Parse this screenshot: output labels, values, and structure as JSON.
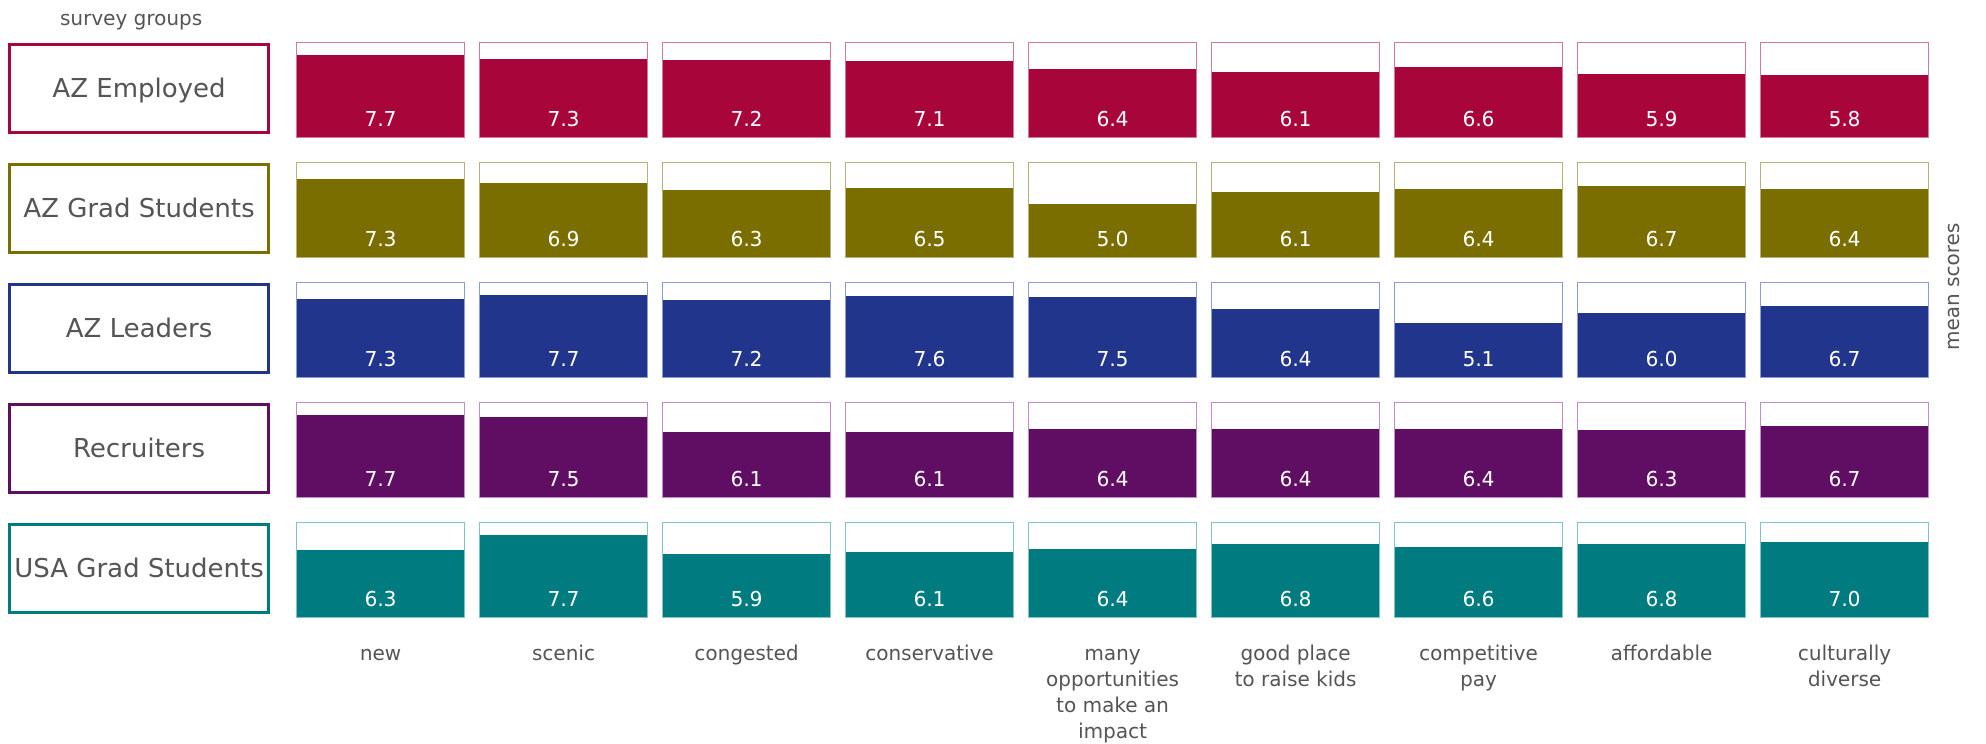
{
  "header": {
    "groups_label": "survey groups"
  },
  "right_label": "mean scores",
  "chart_data": {
    "type": "bar",
    "title": "",
    "ylabel": "mean scores",
    "ylim": [
      0,
      9
    ],
    "categories": [
      "new",
      "scenic",
      "congested",
      "conservative",
      "many opportunities to make an impact",
      "good place to raise kids",
      "competitive pay",
      "affordable",
      "culturally diverse"
    ],
    "category_lines": [
      [
        "new"
      ],
      [
        "scenic"
      ],
      [
        "congested"
      ],
      [
        "conservative"
      ],
      [
        "many",
        "opportunities",
        "to make an",
        "impact"
      ],
      [
        "good place",
        "to raise kids"
      ],
      [
        "competitive",
        "pay"
      ],
      [
        "affordable"
      ],
      [
        "culturally",
        "diverse"
      ]
    ],
    "series": [
      {
        "name": "AZ Employed",
        "color": "#a8063a",
        "border": "#d47a99",
        "values": [
          7.7,
          7.3,
          7.2,
          7.1,
          6.4,
          6.1,
          6.6,
          5.9,
          5.8
        ]
      },
      {
        "name": "AZ Grad Students",
        "color": "#7a6e00",
        "border": "#b8b07a",
        "values": [
          7.3,
          6.9,
          6.3,
          6.5,
          5.0,
          6.1,
          6.4,
          6.7,
          6.4
        ]
      },
      {
        "name": "AZ Leaders",
        "color": "#22358c",
        "border": "#8f9bd6",
        "values": [
          7.3,
          7.7,
          7.2,
          7.6,
          7.5,
          6.4,
          5.1,
          6.0,
          6.7
        ]
      },
      {
        "name": "Recruiters",
        "color": "#600e63",
        "border": "#c28ccb",
        "values": [
          7.7,
          7.5,
          6.1,
          6.1,
          6.4,
          6.4,
          6.4,
          6.3,
          6.7
        ]
      },
      {
        "name": "USA Grad Students",
        "color": "#007b80",
        "border": "#80c4c7",
        "values": [
          6.3,
          7.7,
          5.9,
          6.1,
          6.4,
          6.8,
          6.6,
          6.8,
          7.0
        ]
      }
    ]
  }
}
